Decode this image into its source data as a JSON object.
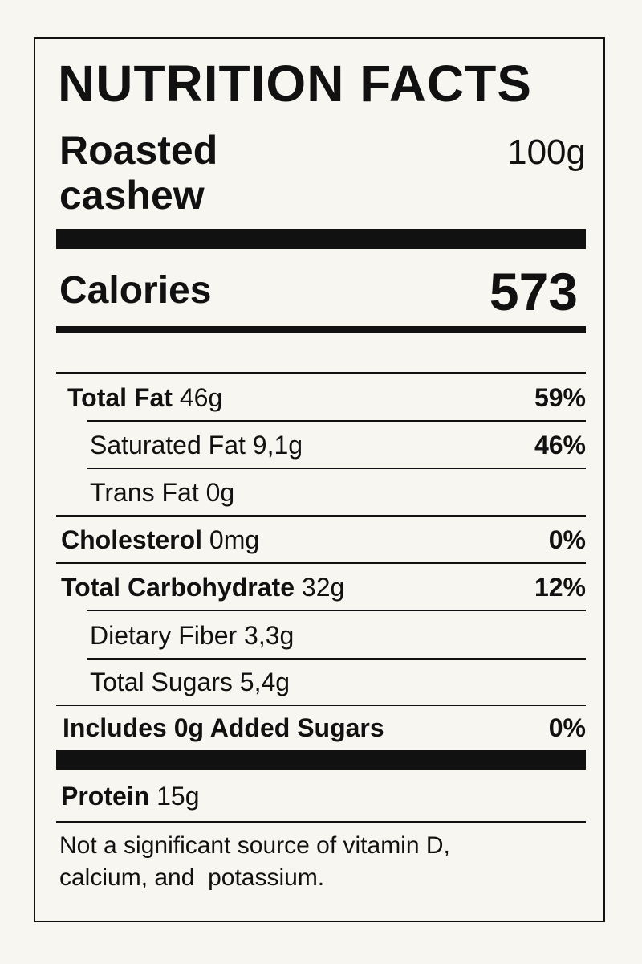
{
  "header": {
    "title": "NUTRITION FACTS",
    "product": [
      "Roasted",
      "cashew"
    ],
    "serving": "100g"
  },
  "calories": {
    "label": "Calories",
    "value": "573"
  },
  "rows": [
    {
      "label": "Total Fat",
      "amount": "46g",
      "dv": "59%"
    },
    {
      "label": "Saturated Fat",
      "amount": "9,1g",
      "dv": "46%"
    },
    {
      "label": "Trans Fat",
      "amount": "0g"
    },
    {
      "label": "Cholesterol",
      "amount": "0mg",
      "dv": "0%"
    },
    {
      "label": "Total Carbohydrate",
      "amount": "32g",
      "dv": "12%"
    },
    {
      "label": "Dietary Fiber",
      "amount": "3,3g"
    },
    {
      "label": "Total Sugars",
      "amount": "5,4g"
    },
    {
      "label": "Includes 0g Added Sugars",
      "dv": "0%"
    }
  ],
  "protein": {
    "label": "Protein",
    "amount": "15g"
  },
  "footnote": [
    "Not a significant source of vitamin D,",
    "calcium, and  potassium."
  ]
}
